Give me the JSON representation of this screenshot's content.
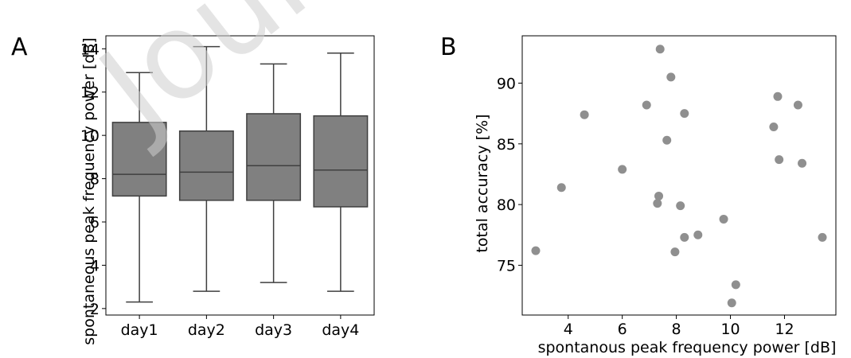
{
  "panels": {
    "a_label": "A",
    "b_label": "B"
  },
  "watermark": "Journal",
  "chart_data": [
    {
      "type": "box",
      "panel": "A",
      "xlabel": "",
      "ylabel": "spontaneous peak frequency power [dB]",
      "categories": [
        "day1",
        "day2",
        "day3",
        "day4"
      ],
      "boxes": [
        {
          "whisker_low": 2.3,
          "q1": 7.2,
          "median": 8.2,
          "q3": 10.6,
          "whisker_high": 12.9
        },
        {
          "whisker_low": 2.8,
          "q1": 7.0,
          "median": 8.3,
          "q3": 10.2,
          "whisker_high": 14.1
        },
        {
          "whisker_low": 3.2,
          "q1": 7.0,
          "median": 8.6,
          "q3": 11.0,
          "whisker_high": 13.3
        },
        {
          "whisker_low": 2.8,
          "q1": 6.7,
          "median": 8.4,
          "q3": 10.9,
          "whisker_high": 13.8
        }
      ],
      "ylim": [
        1.7,
        14.6
      ],
      "yticks": [
        2,
        4,
        6,
        8,
        10,
        12,
        14
      ],
      "box_color": "#808080",
      "grid": false
    },
    {
      "type": "scatter",
      "panel": "B",
      "xlabel": "spontanous peak frequency power [dB]",
      "ylabel": "total accuracy [%]",
      "xlim": [
        2.3,
        13.9
      ],
      "ylim": [
        70.9,
        93.9
      ],
      "xticks": [
        4,
        6,
        8,
        10,
        12
      ],
      "yticks": [
        75,
        80,
        85,
        90
      ],
      "point_color": "#8f8f8f",
      "grid": false,
      "points": [
        {
          "x": 2.8,
          "y": 76.2
        },
        {
          "x": 3.75,
          "y": 81.4
        },
        {
          "x": 4.6,
          "y": 87.4
        },
        {
          "x": 6.0,
          "y": 82.9
        },
        {
          "x": 6.9,
          "y": 88.2
        },
        {
          "x": 7.3,
          "y": 80.1
        },
        {
          "x": 7.35,
          "y": 80.7
        },
        {
          "x": 7.4,
          "y": 92.8
        },
        {
          "x": 7.65,
          "y": 85.3
        },
        {
          "x": 7.8,
          "y": 90.5
        },
        {
          "x": 7.95,
          "y": 76.1
        },
        {
          "x": 8.15,
          "y": 79.9
        },
        {
          "x": 8.3,
          "y": 77.3
        },
        {
          "x": 8.3,
          "y": 87.5
        },
        {
          "x": 8.8,
          "y": 77.5
        },
        {
          "x": 9.75,
          "y": 78.8
        },
        {
          "x": 10.05,
          "y": 71.9
        },
        {
          "x": 10.2,
          "y": 73.4
        },
        {
          "x": 11.6,
          "y": 86.4
        },
        {
          "x": 11.75,
          "y": 88.9
        },
        {
          "x": 11.8,
          "y": 83.7
        },
        {
          "x": 12.5,
          "y": 88.2
        },
        {
          "x": 12.65,
          "y": 83.4
        },
        {
          "x": 13.4,
          "y": 77.3
        }
      ]
    }
  ]
}
